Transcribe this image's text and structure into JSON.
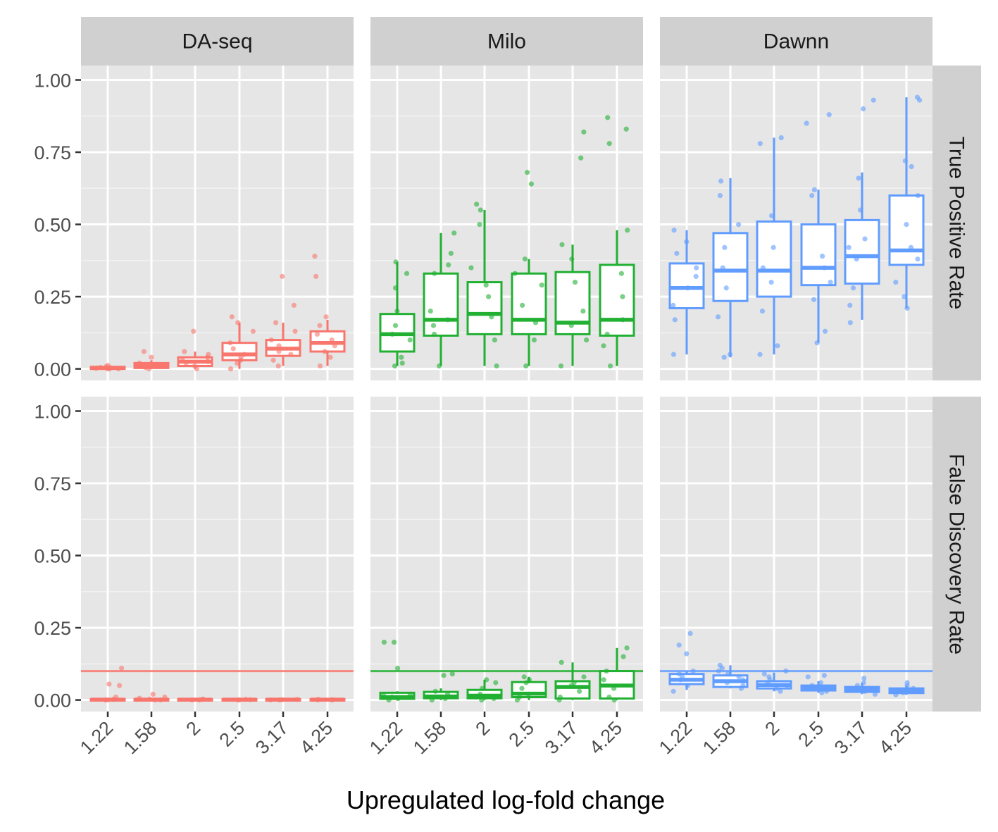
{
  "chart_data": {
    "type": "boxplot",
    "xlabel": "Upregulated log-fold change",
    "ylabel": "",
    "x_categories": [
      "1.22",
      "1.58",
      "2",
      "2.5",
      "3.17",
      "4.25"
    ],
    "y_ticks": [
      "0.00",
      "0.25",
      "0.50",
      "0.75",
      "1.00"
    ],
    "ylim": [
      -0.04,
      1.05
    ],
    "facet_columns": [
      "DA-seq",
      "Milo",
      "Dawnn"
    ],
    "facet_rows": [
      "True Positive Rate",
      "False Discovery Rate"
    ],
    "colors": {
      "DA-seq": "#F8766D",
      "Milo": "#22B033",
      "Dawnn": "#619CFF"
    },
    "reference_line": {
      "row": "False Discovery Rate",
      "y": 0.1
    },
    "panels": [
      {
        "method": "DA-seq",
        "metric": "True Positive Rate",
        "boxes": [
          {
            "q1": 0.0,
            "median": 0.003,
            "q3": 0.007,
            "whisk_lo": 0.0,
            "whisk_hi": 0.01
          },
          {
            "q1": 0.003,
            "median": 0.01,
            "q3": 0.02,
            "whisk_lo": 0.0,
            "whisk_hi": 0.03
          },
          {
            "q1": 0.01,
            "median": 0.025,
            "q3": 0.04,
            "whisk_lo": 0.0,
            "whisk_hi": 0.06
          },
          {
            "q1": 0.03,
            "median": 0.05,
            "q3": 0.09,
            "whisk_lo": 0.0,
            "whisk_hi": 0.16
          },
          {
            "q1": 0.045,
            "median": 0.07,
            "q3": 0.1,
            "whisk_lo": 0.01,
            "whisk_hi": 0.16
          },
          {
            "q1": 0.06,
            "median": 0.09,
            "q3": 0.13,
            "whisk_lo": 0.01,
            "whisk_hi": 0.17
          }
        ]
      },
      {
        "method": "Milo",
        "metric": "True Positive Rate",
        "boxes": [
          {
            "q1": 0.06,
            "median": 0.12,
            "q3": 0.19,
            "whisk_lo": 0.01,
            "whisk_hi": 0.37
          },
          {
            "q1": 0.115,
            "median": 0.17,
            "q3": 0.33,
            "whisk_lo": 0.01,
            "whisk_hi": 0.47
          },
          {
            "q1": 0.12,
            "median": 0.19,
            "q3": 0.3,
            "whisk_lo": 0.01,
            "whisk_hi": 0.55
          },
          {
            "q1": 0.12,
            "median": 0.17,
            "q3": 0.33,
            "whisk_lo": 0.01,
            "whisk_hi": 0.38
          },
          {
            "q1": 0.12,
            "median": 0.16,
            "q3": 0.335,
            "whisk_lo": 0.01,
            "whisk_hi": 0.43
          },
          {
            "q1": 0.115,
            "median": 0.17,
            "q3": 0.36,
            "whisk_lo": 0.01,
            "whisk_hi": 0.48
          }
        ]
      },
      {
        "method": "Dawnn",
        "metric": "True Positive Rate",
        "boxes": [
          {
            "q1": 0.21,
            "median": 0.28,
            "q3": 0.365,
            "whisk_lo": 0.05,
            "whisk_hi": 0.48
          },
          {
            "q1": 0.235,
            "median": 0.34,
            "q3": 0.47,
            "whisk_lo": 0.04,
            "whisk_hi": 0.66
          },
          {
            "q1": 0.25,
            "median": 0.34,
            "q3": 0.51,
            "whisk_lo": 0.05,
            "whisk_hi": 0.8
          },
          {
            "q1": 0.29,
            "median": 0.35,
            "q3": 0.5,
            "whisk_lo": 0.09,
            "whisk_hi": 0.62
          },
          {
            "q1": 0.295,
            "median": 0.39,
            "q3": 0.515,
            "whisk_lo": 0.17,
            "whisk_hi": 0.68
          },
          {
            "q1": 0.36,
            "median": 0.41,
            "q3": 0.6,
            "whisk_lo": 0.21,
            "whisk_hi": 0.94
          }
        ]
      },
      {
        "method": "DA-seq",
        "metric": "False Discovery Rate",
        "boxes": [
          {
            "q1": 0.0,
            "median": 0.001,
            "q3": 0.003,
            "whisk_lo": 0.0,
            "whisk_hi": 0.005
          },
          {
            "q1": 0.0,
            "median": 0.001,
            "q3": 0.003,
            "whisk_lo": 0.0,
            "whisk_hi": 0.005
          },
          {
            "q1": 0.0,
            "median": 0.001,
            "q3": 0.003,
            "whisk_lo": 0.0,
            "whisk_hi": 0.005
          },
          {
            "q1": 0.0,
            "median": 0.001,
            "q3": 0.003,
            "whisk_lo": 0.0,
            "whisk_hi": 0.005
          },
          {
            "q1": 0.0,
            "median": 0.001,
            "q3": 0.003,
            "whisk_lo": 0.0,
            "whisk_hi": 0.005
          },
          {
            "q1": 0.0,
            "median": 0.001,
            "q3": 0.003,
            "whisk_lo": 0.0,
            "whisk_hi": 0.005
          }
        ]
      },
      {
        "method": "Milo",
        "metric": "False Discovery Rate",
        "boxes": [
          {
            "q1": 0.004,
            "median": 0.01,
            "q3": 0.025,
            "whisk_lo": 0.0,
            "whisk_hi": 0.03
          },
          {
            "q1": 0.006,
            "median": 0.012,
            "q3": 0.028,
            "whisk_lo": 0.0,
            "whisk_hi": 0.04
          },
          {
            "q1": 0.006,
            "median": 0.015,
            "q3": 0.035,
            "whisk_lo": 0.0,
            "whisk_hi": 0.07
          },
          {
            "q1": 0.01,
            "median": 0.022,
            "q3": 0.062,
            "whisk_lo": 0.0,
            "whisk_hi": 0.08
          },
          {
            "q1": 0.005,
            "median": 0.045,
            "q3": 0.065,
            "whisk_lo": 0.0,
            "whisk_hi": 0.13
          },
          {
            "q1": 0.005,
            "median": 0.05,
            "q3": 0.1,
            "whisk_lo": 0.0,
            "whisk_hi": 0.18
          }
        ]
      },
      {
        "method": "Dawnn",
        "metric": "False Discovery Rate",
        "boxes": [
          {
            "q1": 0.055,
            "median": 0.07,
            "q3": 0.09,
            "whisk_lo": 0.035,
            "whisk_hi": 0.1
          },
          {
            "q1": 0.045,
            "median": 0.065,
            "q3": 0.085,
            "whisk_lo": 0.04,
            "whisk_hi": 0.12
          },
          {
            "q1": 0.04,
            "median": 0.052,
            "q3": 0.065,
            "whisk_lo": 0.03,
            "whisk_hi": 0.095
          },
          {
            "q1": 0.033,
            "median": 0.042,
            "q3": 0.05,
            "whisk_lo": 0.025,
            "whisk_hi": 0.065
          },
          {
            "q1": 0.028,
            "median": 0.037,
            "q3": 0.045,
            "whisk_lo": 0.02,
            "whisk_hi": 0.06
          },
          {
            "q1": 0.024,
            "median": 0.032,
            "q3": 0.04,
            "whisk_lo": 0.018,
            "whisk_hi": 0.05
          }
        ]
      }
    ],
    "points": {
      "DA-seq|True Positive Rate": [
        [
          0.0,
          0.0,
          0.003,
          0.005,
          0.008,
          0.012,
          0.002,
          0.0,
          0.004
        ],
        [
          0.0,
          0.005,
          0.01,
          0.015,
          0.02,
          0.04,
          0.06,
          0.012,
          0.008
        ],
        [
          0.0,
          0.01,
          0.02,
          0.03,
          0.04,
          0.05,
          0.06,
          0.13,
          0.025
        ],
        [
          0.0,
          0.02,
          0.04,
          0.05,
          0.07,
          0.09,
          0.13,
          0.16,
          0.18,
          0.03
        ],
        [
          0.01,
          0.03,
          0.05,
          0.06,
          0.08,
          0.1,
          0.13,
          0.16,
          0.22,
          0.32
        ],
        [
          0.01,
          0.04,
          0.06,
          0.08,
          0.1,
          0.12,
          0.15,
          0.18,
          0.32,
          0.39
        ]
      ],
      "Milo|True Positive Rate": [
        [
          0.01,
          0.02,
          0.04,
          0.1,
          0.12,
          0.15,
          0.2,
          0.28,
          0.33,
          0.37
        ],
        [
          0.01,
          0.12,
          0.15,
          0.17,
          0.2,
          0.33,
          0.36,
          0.4,
          0.47
        ],
        [
          0.01,
          0.1,
          0.18,
          0.25,
          0.29,
          0.35,
          0.5,
          0.55,
          0.57
        ],
        [
          0.01,
          0.1,
          0.16,
          0.22,
          0.29,
          0.33,
          0.38,
          0.64,
          0.68
        ],
        [
          0.01,
          0.1,
          0.15,
          0.2,
          0.3,
          0.38,
          0.43,
          0.73,
          0.82
        ],
        [
          0.01,
          0.08,
          0.12,
          0.17,
          0.25,
          0.33,
          0.48,
          0.78,
          0.83,
          0.87
        ]
      ],
      "Dawnn|True Positive Rate": [
        [
          0.05,
          0.17,
          0.22,
          0.28,
          0.32,
          0.35,
          0.4,
          0.44,
          0.48
        ],
        [
          0.04,
          0.05,
          0.18,
          0.28,
          0.35,
          0.42,
          0.5,
          0.6,
          0.65
        ],
        [
          0.05,
          0.08,
          0.2,
          0.3,
          0.35,
          0.42,
          0.53,
          0.78,
          0.8
        ],
        [
          0.09,
          0.13,
          0.24,
          0.3,
          0.35,
          0.39,
          0.6,
          0.62,
          0.85,
          0.88
        ],
        [
          0.16,
          0.22,
          0.28,
          0.38,
          0.42,
          0.45,
          0.55,
          0.66,
          0.9,
          0.93
        ],
        [
          0.21,
          0.25,
          0.3,
          0.38,
          0.42,
          0.5,
          0.6,
          0.7,
          0.72,
          0.93,
          0.94
        ]
      ],
      "DA-seq|False Discovery Rate": [
        [
          0.0,
          0.0,
          0.002,
          0.01,
          0.05,
          0.055,
          0.11
        ],
        [
          0.0,
          0.0,
          0.003,
          0.006,
          0.01,
          0.02
        ],
        [
          0.0,
          0.0,
          0.002,
          0.003
        ],
        [
          0.0,
          0.0,
          0.001,
          0.002
        ],
        [
          0.0,
          0.0,
          0.001,
          0.002
        ],
        [
          0.0,
          0.0,
          0.001,
          0.002
        ]
      ],
      "Milo|False Discovery Rate": [
        [
          0.0,
          0.005,
          0.01,
          0.015,
          0.02,
          0.11,
          0.2,
          0.2
        ],
        [
          0.0,
          0.005,
          0.01,
          0.02,
          0.03,
          0.09,
          0.085
        ],
        [
          0.0,
          0.005,
          0.01,
          0.02,
          0.04,
          0.06,
          0.07
        ],
        [
          0.0,
          0.01,
          0.02,
          0.04,
          0.06,
          0.07,
          0.08
        ],
        [
          0.0,
          0.01,
          0.03,
          0.05,
          0.06,
          0.08,
          0.13
        ],
        [
          0.0,
          0.01,
          0.04,
          0.07,
          0.1,
          0.15,
          0.18
        ]
      ],
      "Dawnn|False Discovery Rate": [
        [
          0.03,
          0.05,
          0.07,
          0.08,
          0.09,
          0.1,
          0.16,
          0.19,
          0.23
        ],
        [
          0.04,
          0.05,
          0.06,
          0.07,
          0.08,
          0.09,
          0.1,
          0.11,
          0.12
        ],
        [
          0.03,
          0.04,
          0.05,
          0.06,
          0.07,
          0.08,
          0.09,
          0.1
        ],
        [
          0.025,
          0.03,
          0.04,
          0.05,
          0.06,
          0.08,
          0.085
        ],
        [
          0.02,
          0.03,
          0.04,
          0.05,
          0.06,
          0.075
        ],
        [
          0.018,
          0.025,
          0.03,
          0.04,
          0.05,
          0.06
        ]
      ]
    }
  }
}
